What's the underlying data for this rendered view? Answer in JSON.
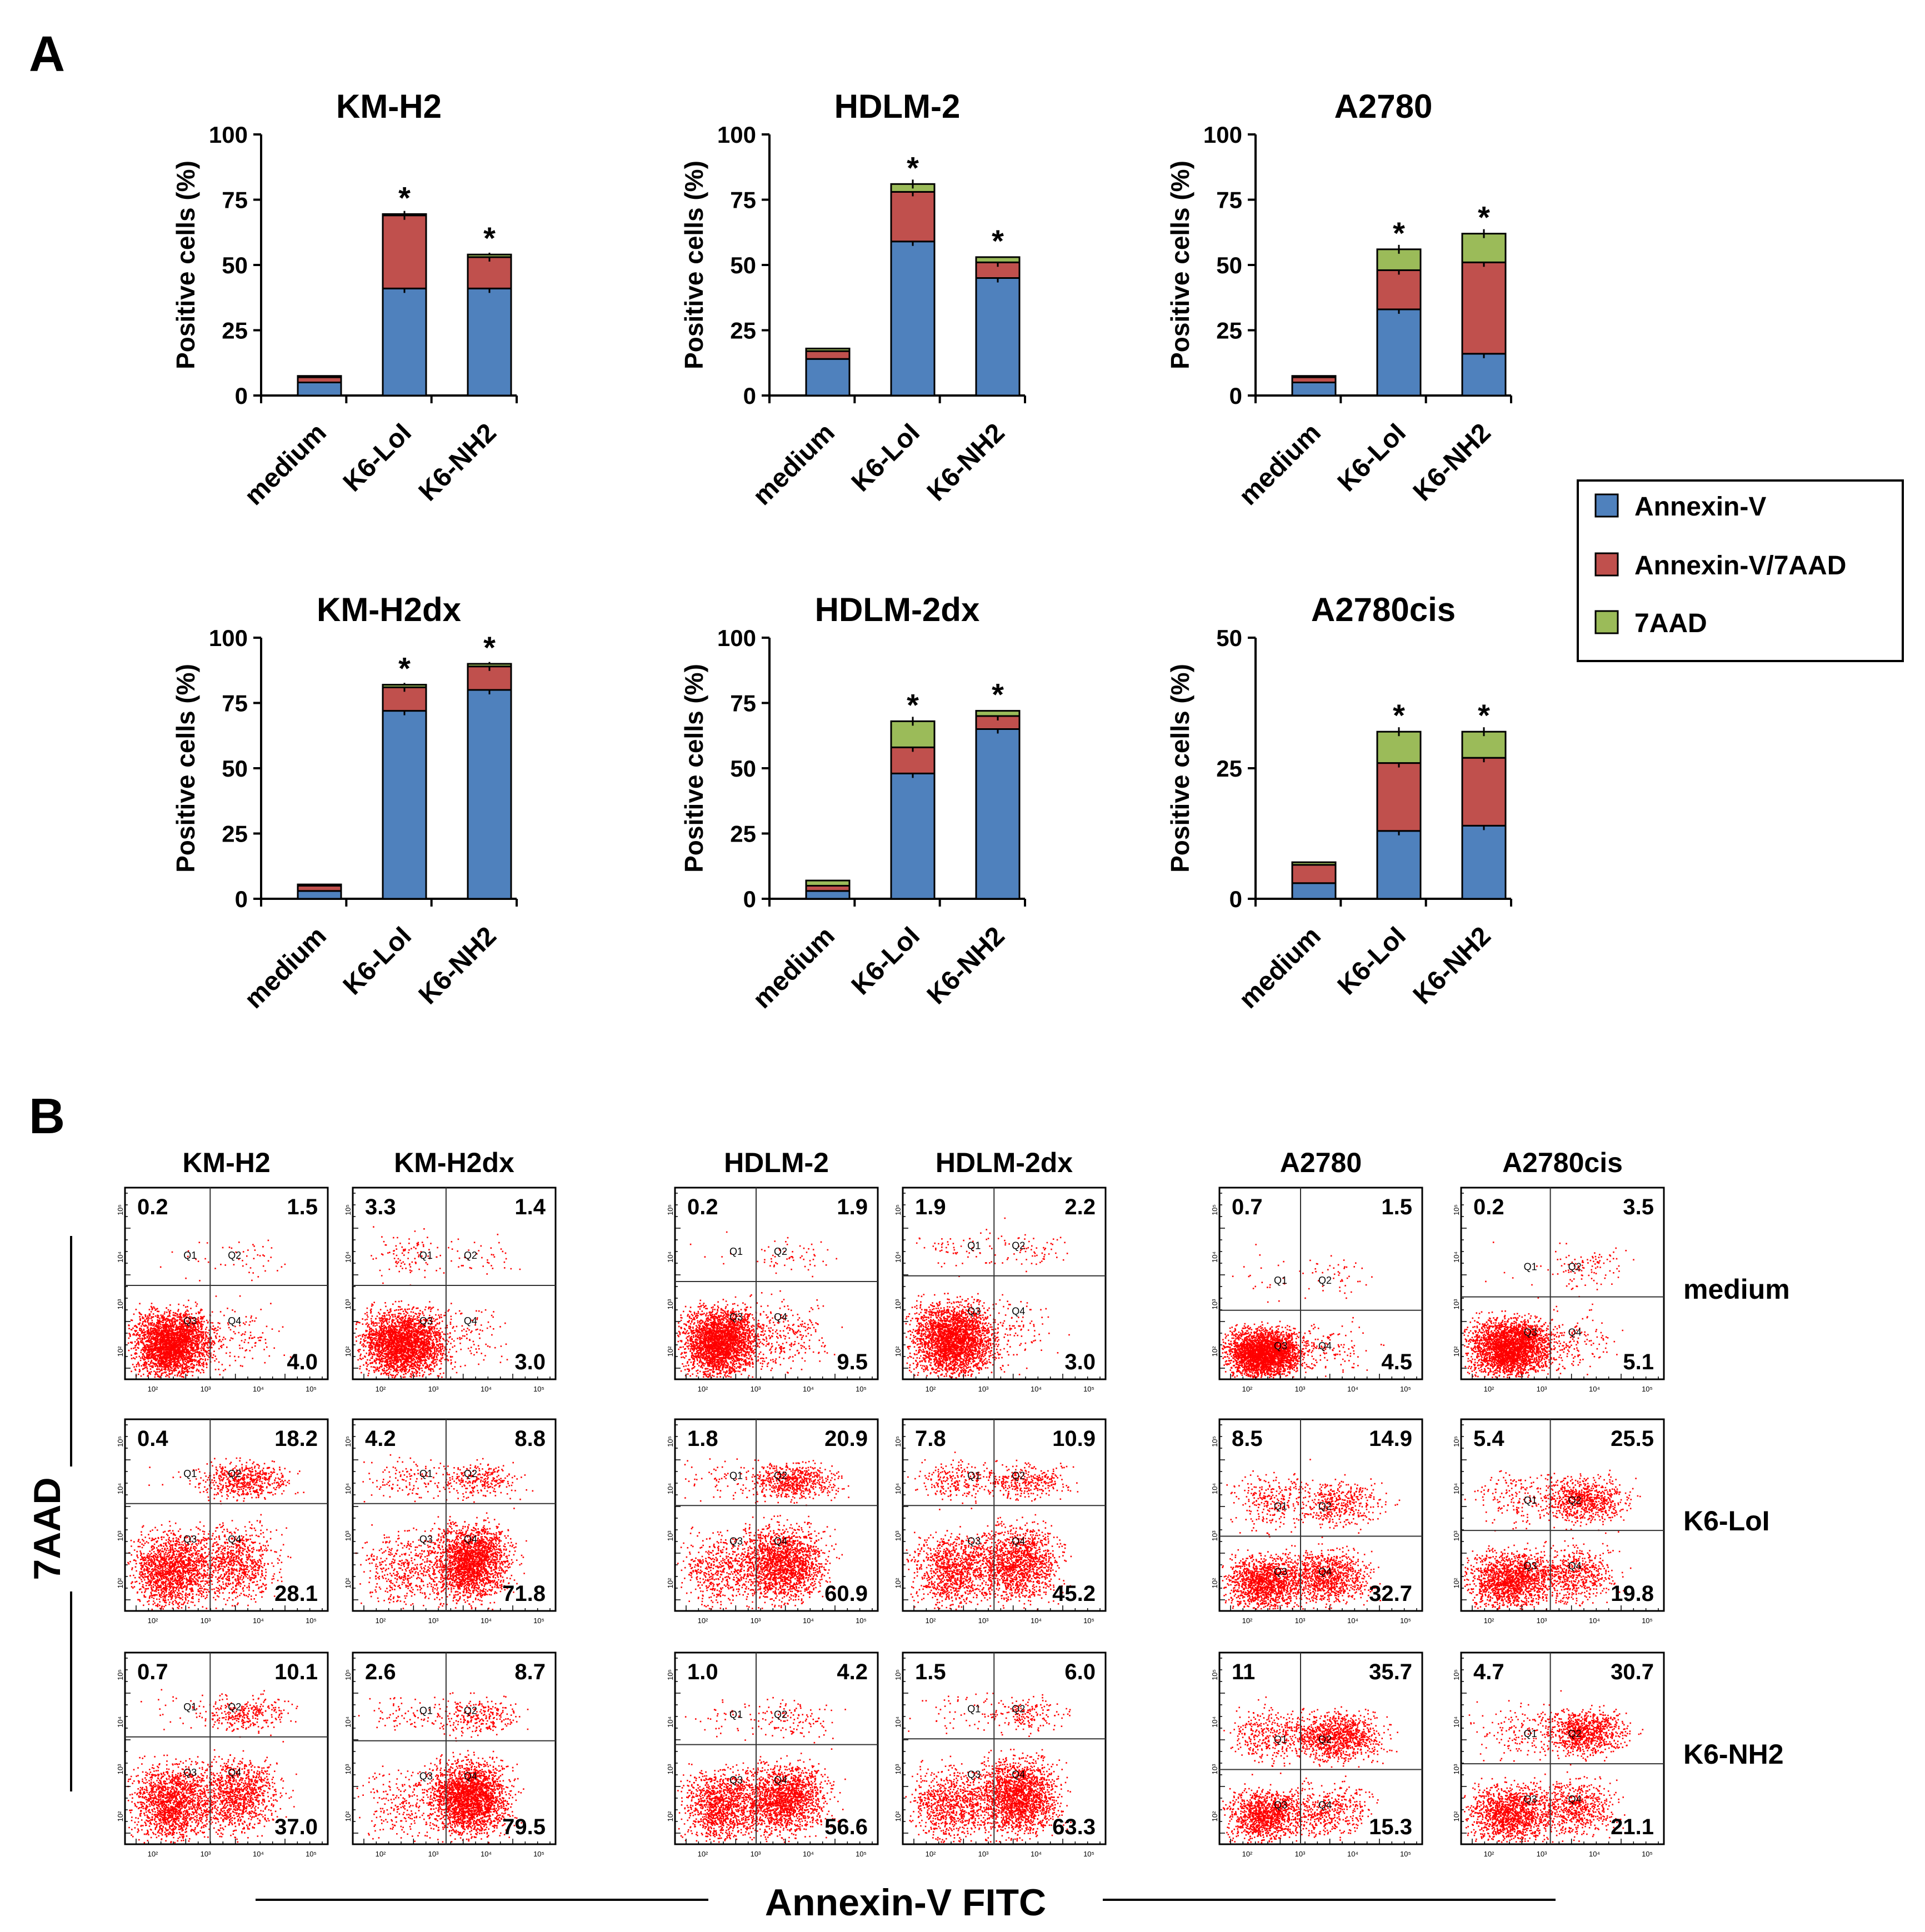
{
  "panel_labels": {
    "a": "A",
    "b": "B"
  },
  "legend": {
    "items": [
      {
        "label": "Annexin-V",
        "color": "#4f81bd"
      },
      {
        "label": "Annexin-V/7AAD",
        "color": "#c0504d"
      },
      {
        "label": "7AAD",
        "color": "#9bbb59"
      }
    ]
  },
  "colors": {
    "annexin": "#4f81bd",
    "double": "#c0504d",
    "aad": "#9bbb59",
    "dots": "#ff0000"
  },
  "chart_data": [
    {
      "type": "bar",
      "stacked": true,
      "title": "KM-H2",
      "ylabel": "Positive cells (%)",
      "ylim": [
        0,
        100
      ],
      "yticks": [
        "0",
        "25",
        "50",
        "75",
        "100"
      ],
      "categories": [
        "medium",
        "K6-LoI",
        "K6-NH2"
      ],
      "series": [
        {
          "name": "Annexin-V",
          "values": [
            5,
            41,
            41
          ]
        },
        {
          "name": "Annexin-V/7AAD",
          "values": [
            2,
            28,
            12
          ]
        },
        {
          "name": "7AAD",
          "values": [
            0.5,
            0.5,
            1
          ]
        }
      ],
      "significance": [
        "",
        "*",
        "*"
      ]
    },
    {
      "type": "bar",
      "stacked": true,
      "title": "HDLM-2",
      "ylabel": "Positive cells  (%)",
      "ylim": [
        0,
        100
      ],
      "yticks": [
        "0",
        "25",
        "50",
        "75",
        "100"
      ],
      "categories": [
        "medium",
        "K6-LoI",
        "K6-NH2"
      ],
      "series": [
        {
          "name": "Annexin-V",
          "values": [
            14,
            59,
            45
          ]
        },
        {
          "name": "Annexin-V/7AAD",
          "values": [
            3,
            19,
            6
          ]
        },
        {
          "name": "7AAD",
          "values": [
            1,
            3,
            2
          ]
        }
      ],
      "significance": [
        "",
        "*",
        "*"
      ]
    },
    {
      "type": "bar",
      "stacked": true,
      "title": "A2780",
      "ylabel": "Positive cells  (%)",
      "ylim": [
        0,
        100
      ],
      "yticks": [
        "0",
        "25",
        "50",
        "75",
        "100"
      ],
      "categories": [
        "medium",
        "K6-LoI",
        "K6-NH2"
      ],
      "series": [
        {
          "name": "Annexin-V",
          "values": [
            5,
            33,
            16
          ]
        },
        {
          "name": "Annexin-V/7AAD",
          "values": [
            2,
            15,
            35
          ]
        },
        {
          "name": "7AAD",
          "values": [
            0.5,
            8,
            11
          ]
        }
      ],
      "significance": [
        "",
        "*",
        "*"
      ]
    },
    {
      "type": "bar",
      "stacked": true,
      "title": "KM-H2dx",
      "ylabel": "Positive cells (%)",
      "ylim": [
        0,
        100
      ],
      "yticks": [
        "0",
        "25",
        "50",
        "75",
        "100"
      ],
      "categories": [
        "medium",
        "K6-LoI",
        "K6-NH2"
      ],
      "series": [
        {
          "name": "Annexin-V",
          "values": [
            3,
            72,
            80
          ]
        },
        {
          "name": "Annexin-V/7AAD",
          "values": [
            2,
            9,
            9
          ]
        },
        {
          "name": "7AAD",
          "values": [
            0.5,
            1,
            1
          ]
        }
      ],
      "significance": [
        "",
        "*",
        "*"
      ]
    },
    {
      "type": "bar",
      "stacked": true,
      "title": "HDLM-2dx",
      "ylabel": "Positive cells  (%)",
      "ylim": [
        0,
        100
      ],
      "yticks": [
        "0",
        "25",
        "50",
        "75",
        "100"
      ],
      "categories": [
        "medium",
        "K6-LoI",
        "K6-NH2"
      ],
      "series": [
        {
          "name": "Annexin-V",
          "values": [
            3,
            48,
            65
          ]
        },
        {
          "name": "Annexin-V/7AAD",
          "values": [
            2,
            10,
            5
          ]
        },
        {
          "name": "7AAD",
          "values": [
            2,
            10,
            2
          ]
        }
      ],
      "significance": [
        "",
        "*",
        "*"
      ]
    },
    {
      "type": "bar",
      "stacked": true,
      "title": "A2780cis",
      "ylabel": "Positive cells  (%)",
      "ylim": [
        0,
        50
      ],
      "yticks": [
        "0",
        "25",
        "50"
      ],
      "categories": [
        "medium",
        "K6-LoI",
        "K6-NH2"
      ],
      "series": [
        {
          "name": "Annexin-V",
          "values": [
            3,
            13,
            14
          ]
        },
        {
          "name": "Annexin-V/7AAD",
          "values": [
            3.5,
            13,
            13
          ]
        },
        {
          "name": "7AAD",
          "values": [
            0.5,
            6,
            5
          ]
        }
      ],
      "significance": [
        "",
        "*",
        "*"
      ]
    }
  ],
  "flow": {
    "columns": [
      "KM-H2",
      "KM-H2dx",
      "HDLM-2",
      "HDLM-2dx",
      "A2780",
      "A2780cis"
    ],
    "rows": [
      "medium",
      "K6-LoI",
      "K6-NH2"
    ],
    "y_axis_label": "7AAD",
    "x_axis_label": "Annexin-V FITC",
    "gate_labels": [
      "Q1",
      "Q2",
      "Q3",
      "Q4"
    ],
    "axis_ticks": [
      "10²",
      "10³",
      "10⁴",
      "10⁵"
    ],
    "quadrant_values": [
      [
        [
          "0.2",
          "1.5",
          "4.0"
        ],
        [
          "3.3",
          "1.4",
          "3.0"
        ],
        [
          "0.2",
          "1.9",
          "9.5"
        ],
        [
          "1.9",
          "2.2",
          "3.0"
        ],
        [
          "0.7",
          "1.5",
          "4.5"
        ],
        [
          "0.2",
          "3.5",
          "5.1"
        ]
      ],
      [
        [
          "0.4",
          "18.2",
          "28.1"
        ],
        [
          "4.2",
          "8.8",
          "71.8"
        ],
        [
          "1.8",
          "20.9",
          "60.9"
        ],
        [
          "7.8",
          "10.9",
          "45.2"
        ],
        [
          "8.5",
          "14.9",
          "32.7"
        ],
        [
          "5.4",
          "25.5",
          "19.8"
        ]
      ],
      [
        [
          "0.7",
          "10.1",
          "37.0"
        ],
        [
          "2.6",
          "8.7",
          "79.5"
        ],
        [
          "1.0",
          "4.2",
          "56.6"
        ],
        [
          "1.5",
          "6.0",
          "63.3"
        ],
        [
          "11",
          "35.7",
          "15.3"
        ],
        [
          "4.7",
          "30.7",
          "21.1"
        ]
      ]
    ]
  }
}
